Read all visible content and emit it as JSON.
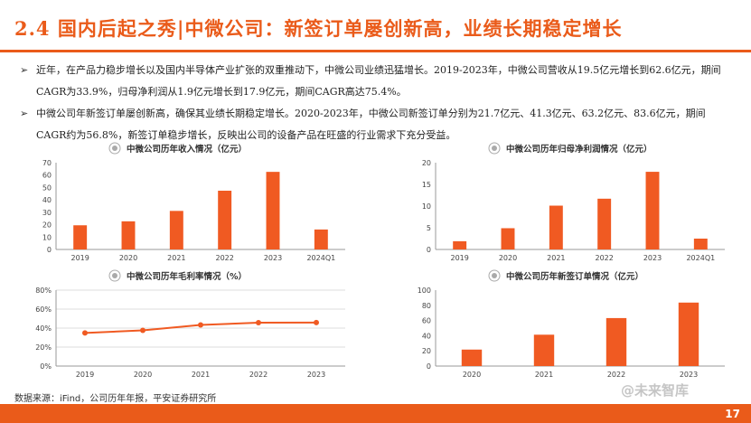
{
  "header": {
    "title": "2.4 国内后起之秀|中微公司：新签订单屡创新高，业绩长期稳定增长"
  },
  "bullets": [
    {
      "marker": "➢",
      "text": "近年，在产品力稳步增长以及国内半导体产业扩张的双重推动下，中微公司业绩迅猛增长。2019-2023年，中微公司营收从19.5亿元增长到62.6亿元，期间CAGR为33.9%，归母净利润从1.9亿元增长到17.9亿元，期间CAGR高达75.4%。"
    },
    {
      "marker": "➢",
      "text": "中微公司年新签订单屡创新高，确保其业绩长期稳定增长。2020-2023年，中微公司新签订单分别为21.7亿元、41.3亿元、63.2亿元、83.6亿元，期间CAGR约为56.8%，新签订单稳步增长，反映出公司的设备产品在旺盛的行业需求下充分受益。"
    }
  ],
  "colors": {
    "accent": "#ea5b1a",
    "bar": "#f05a22",
    "line": "#f05a22",
    "grid": "#dddddd",
    "axis": "#999999"
  },
  "chart_data": [
    {
      "id": "revenue",
      "type": "bar",
      "title": "中微公司历年收入情况（亿元）",
      "categories": [
        "2019",
        "2020",
        "2021",
        "2022",
        "2023",
        "2024Q1"
      ],
      "values": [
        19.5,
        22.7,
        31.1,
        47.4,
        62.6,
        16.1
      ],
      "ylim": [
        0,
        70
      ],
      "yticks": [
        "0",
        "10",
        "20",
        "30",
        "40",
        "50",
        "60",
        "70"
      ],
      "grid": false
    },
    {
      "id": "net_profit",
      "type": "bar",
      "title": "中微公司历年归母净利润情况（亿元）",
      "categories": [
        "2019",
        "2020",
        "2021",
        "2022",
        "2023",
        "2024Q1"
      ],
      "values": [
        1.9,
        4.9,
        10.1,
        11.7,
        17.9,
        2.5
      ],
      "ylim": [
        0,
        20
      ],
      "yticks": [
        "0",
        "5",
        "10",
        "15",
        "20"
      ],
      "grid": false
    },
    {
      "id": "gross_margin",
      "type": "line",
      "title": "中微公司历年毛利率情况（%）",
      "categories": [
        "2019",
        "2020",
        "2021",
        "2022",
        "2023"
      ],
      "values": [
        34.9,
        37.6,
        43.3,
        45.7,
        45.8
      ],
      "ylim": [
        0,
        80
      ],
      "yticks": [
        "0%",
        "20%",
        "40%",
        "60%",
        "80%"
      ],
      "grid": true
    },
    {
      "id": "new_orders",
      "type": "bar",
      "title": "中微公司历年新签订单情况（亿元）",
      "categories": [
        "2020",
        "2021",
        "2022",
        "2023"
      ],
      "values": [
        21.7,
        41.3,
        63.2,
        83.6
      ],
      "ylim": [
        0,
        100
      ],
      "yticks": [
        "0",
        "20",
        "40",
        "60",
        "80",
        "100"
      ],
      "grid": false
    }
  ],
  "source": "数据来源：iFind，公司历年年报，平安证券研究所",
  "page_number": "17",
  "watermark": "@未来智库"
}
